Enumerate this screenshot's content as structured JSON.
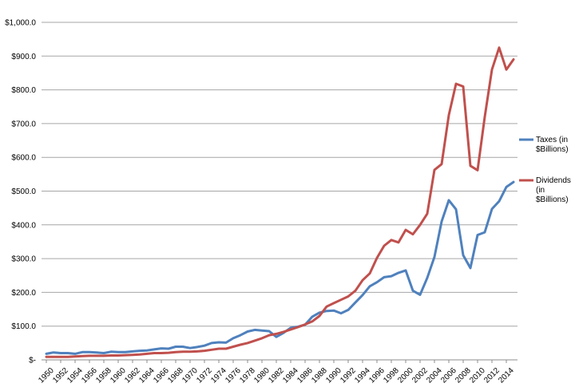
{
  "chart_data": {
    "type": "line",
    "x": [
      1950,
      1951,
      1952,
      1953,
      1954,
      1955,
      1956,
      1957,
      1958,
      1959,
      1960,
      1961,
      1962,
      1963,
      1964,
      1965,
      1966,
      1967,
      1968,
      1969,
      1970,
      1971,
      1972,
      1973,
      1974,
      1975,
      1976,
      1977,
      1978,
      1979,
      1980,
      1981,
      1982,
      1983,
      1984,
      1985,
      1986,
      1987,
      1988,
      1989,
      1990,
      1991,
      1992,
      1993,
      1994,
      1995,
      1996,
      1997,
      1998,
      1999,
      2000,
      2001,
      2002,
      2003,
      2004,
      2005,
      2006,
      2007,
      2008,
      2009,
      2010,
      2011,
      2012,
      2013,
      2014,
      2015
    ],
    "x_tick_labels": [
      "1950",
      "1952",
      "1954",
      "1956",
      "1958",
      "1960",
      "1962",
      "1964",
      "1966",
      "1968",
      "1970",
      "1972",
      "1974",
      "1976",
      "1978",
      "1980",
      "1982",
      "1984",
      "1986",
      "1988",
      "1990",
      "1992",
      "1994",
      "1996",
      "1998",
      "2000",
      "2002",
      "2004",
      "2006",
      "2008",
      "2010",
      "2012",
      "2014"
    ],
    "y_tick_labels": [
      "$-",
      "$100.0",
      "$200.0",
      "$300.0",
      "$400.0",
      "$500.0",
      "$600.0",
      "$700.0",
      "$800.0",
      "$900.0",
      "$1,000.0"
    ],
    "ylim": [
      0,
      1000
    ],
    "grid": "horizontal",
    "legend_position": "right",
    "series": [
      {
        "name": "Taxes (in $Billions)",
        "color": "#4f81bd",
        "values": [
          18,
          22,
          20,
          20,
          18,
          23,
          23,
          22,
          20,
          24,
          23,
          23,
          25,
          27,
          28,
          31,
          34,
          33,
          39,
          39,
          35,
          38,
          42,
          50,
          52,
          51,
          64,
          73,
          84,
          89,
          87,
          85,
          68,
          80,
          95,
          98,
          104,
          128,
          140,
          145,
          146,
          138,
          148,
          170,
          192,
          218,
          230,
          245,
          248,
          258,
          265,
          205,
          193,
          243,
          305,
          410,
          473,
          446,
          310,
          272,
          370,
          378,
          447,
          470,
          512,
          527
        ]
      },
      {
        "name": "Dividends (in $Billions)",
        "color": "#c0504d",
        "values": [
          9,
          9,
          9,
          9,
          10,
          11,
          12,
          12,
          12,
          13,
          13,
          14,
          15,
          16,
          18,
          20,
          20,
          21,
          23,
          24,
          24,
          25,
          27,
          30,
          33,
          33,
          39,
          45,
          50,
          57,
          64,
          73,
          77,
          83,
          90,
          97,
          105,
          114,
          130,
          158,
          168,
          178,
          188,
          205,
          236,
          256,
          302,
          338,
          355,
          348,
          385,
          372,
          400,
          433,
          563,
          580,
          725,
          818,
          810,
          575,
          562,
          720,
          860,
          925,
          860,
          890
        ]
      }
    ]
  }
}
